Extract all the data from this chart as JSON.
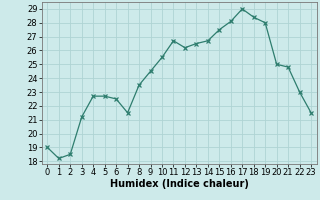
{
  "x": [
    0,
    1,
    2,
    3,
    4,
    5,
    6,
    7,
    8,
    9,
    10,
    11,
    12,
    13,
    14,
    15,
    16,
    17,
    18,
    19,
    20,
    21,
    22,
    23
  ],
  "y": [
    19,
    18.2,
    18.5,
    21.2,
    22.7,
    22.7,
    22.5,
    21.5,
    23.5,
    24.5,
    25.5,
    26.7,
    26.2,
    26.5,
    26.7,
    27.5,
    28.1,
    29.0,
    28.4,
    28.0,
    25.0,
    24.8,
    23.0,
    21.5
  ],
  "xlabel": "Humidex (Indice chaleur)",
  "ylim_min": 17.8,
  "ylim_max": 29.5,
  "xlim_min": -0.5,
  "xlim_max": 23.5,
  "yticks": [
    18,
    19,
    20,
    21,
    22,
    23,
    24,
    25,
    26,
    27,
    28,
    29
  ],
  "xticks": [
    0,
    1,
    2,
    3,
    4,
    5,
    6,
    7,
    8,
    9,
    10,
    11,
    12,
    13,
    14,
    15,
    16,
    17,
    18,
    19,
    20,
    21,
    22,
    23
  ],
  "xtick_labels": [
    "0",
    "1",
    "2",
    "3",
    "4",
    "5",
    "6",
    "7",
    "8",
    "9",
    "10",
    "11",
    "12",
    "13",
    "14",
    "15",
    "16",
    "17",
    "18",
    "19",
    "20",
    "21",
    "22",
    "23"
  ],
  "line_color": "#2e7d6e",
  "marker": "x",
  "background_color": "#cdeaea",
  "grid_color": "#afd4d4",
  "tick_fontsize": 6,
  "xlabel_fontsize": 7
}
